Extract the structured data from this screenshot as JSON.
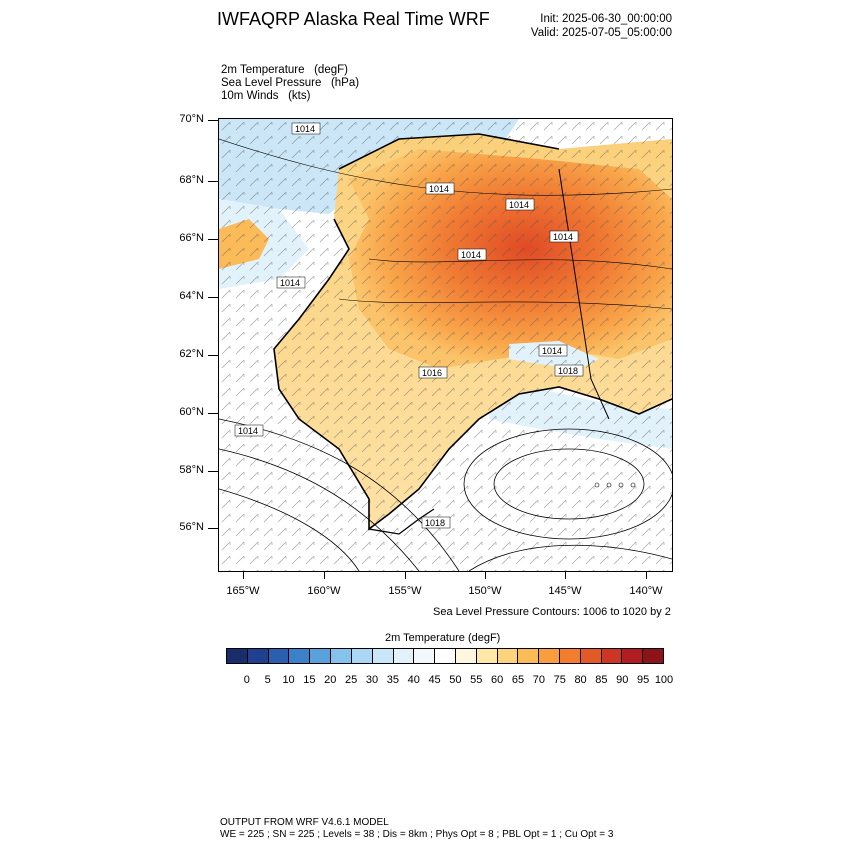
{
  "header": {
    "title": "IWFAQRP Alaska Real Time WRF",
    "init": "Init: 2025-06-30_00:00:00",
    "valid": "Valid: 2025-07-05_05:00:00"
  },
  "fields": {
    "temperature": "2m Temperature   (degF)",
    "pressure": "Sea Level Pressure   (hPa)",
    "winds": "10m Winds   (kts)"
  },
  "map": {
    "lat_labels": [
      "70°N",
      "68°N",
      "66°N",
      "64°N",
      "62°N",
      "60°N",
      "58°N",
      "56°N"
    ],
    "lon_labels": [
      "165°W",
      "160°W",
      "155°W",
      "150°W",
      "145°W",
      "140°W"
    ],
    "contour_labels": [
      "1014",
      "1014",
      "1014",
      "1014",
      "1014",
      "1014",
      "1014",
      "1016",
      "1014",
      "1018",
      "1018"
    ],
    "highlight_color": "#d8402a"
  },
  "slp_note": "Sea Level Pressure Contours: 1006 to 1020 by 2",
  "colorbar": {
    "title": "2m Temperature  (degF)",
    "labels": [
      "0",
      "5",
      "10",
      "15",
      "20",
      "25",
      "30",
      "35",
      "40",
      "45",
      "50",
      "55",
      "60",
      "65",
      "70",
      "75",
      "80",
      "85",
      "90",
      "95",
      "100"
    ],
    "colors": [
      "#1a2d6b",
      "#203f8f",
      "#2a5fb0",
      "#3d7fc8",
      "#5aa1dc",
      "#86c2eb",
      "#aad8f4",
      "#c9e7f8",
      "#e2f2fb",
      "#f2f9fd",
      "#ffffff",
      "#fff6de",
      "#ffe7a8",
      "#fdd37d",
      "#fbbb58",
      "#f89e3f",
      "#f27d30",
      "#e45a27",
      "#cd3524",
      "#b01e21",
      "#8a1418"
    ]
  },
  "footer": {
    "line1": "OUTPUT FROM WRF V4.6.1 MODEL",
    "line2": "WE = 225 ; SN = 225 ; Levels = 38 ; Dis = 8km ; Phys Opt = 8 ; PBL Opt = 1 ; Cu Opt = 3"
  }
}
